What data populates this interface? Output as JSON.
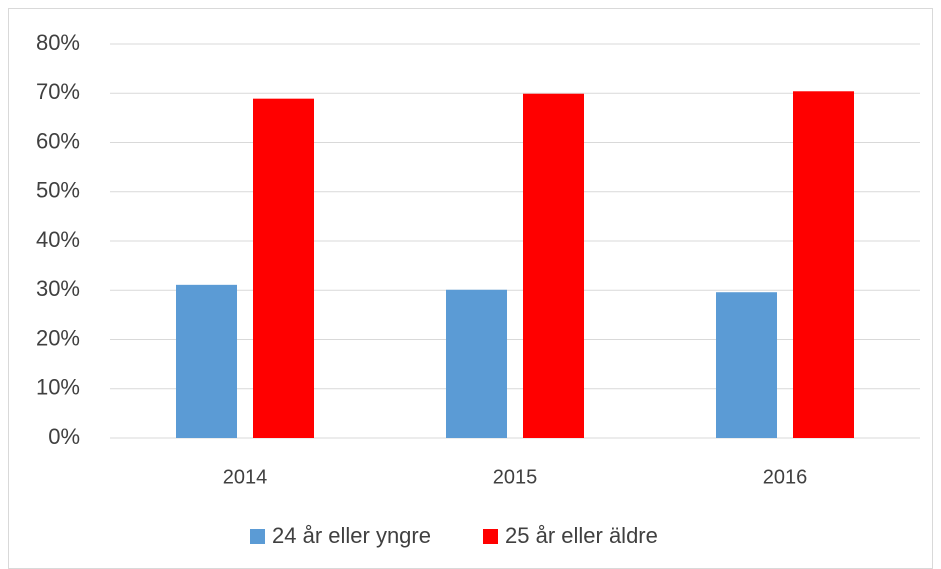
{
  "chart_data": {
    "type": "bar",
    "categories": [
      "2014",
      "2015",
      "2016"
    ],
    "series": [
      {
        "name": "24 år eller yngre",
        "color": "#5b9bd5",
        "values": [
          31.1,
          30.1,
          29.6
        ]
      },
      {
        "name": "25 år eller äldre",
        "color": "#ff0000",
        "values": [
          68.9,
          69.9,
          70.4
        ]
      }
    ],
    "ylim": [
      0,
      80
    ],
    "yticks": [
      {
        "value": 0,
        "label": "0%"
      },
      {
        "value": 10,
        "label": "10%"
      },
      {
        "value": 20,
        "label": "20%"
      },
      {
        "value": 30,
        "label": "30%"
      },
      {
        "value": 40,
        "label": "40%"
      },
      {
        "value": 50,
        "label": "50%"
      },
      {
        "value": 60,
        "label": "60%"
      },
      {
        "value": 70,
        "label": "70%"
      },
      {
        "value": 80,
        "label": "80%"
      }
    ],
    "grid": true,
    "legend": "bottom"
  }
}
